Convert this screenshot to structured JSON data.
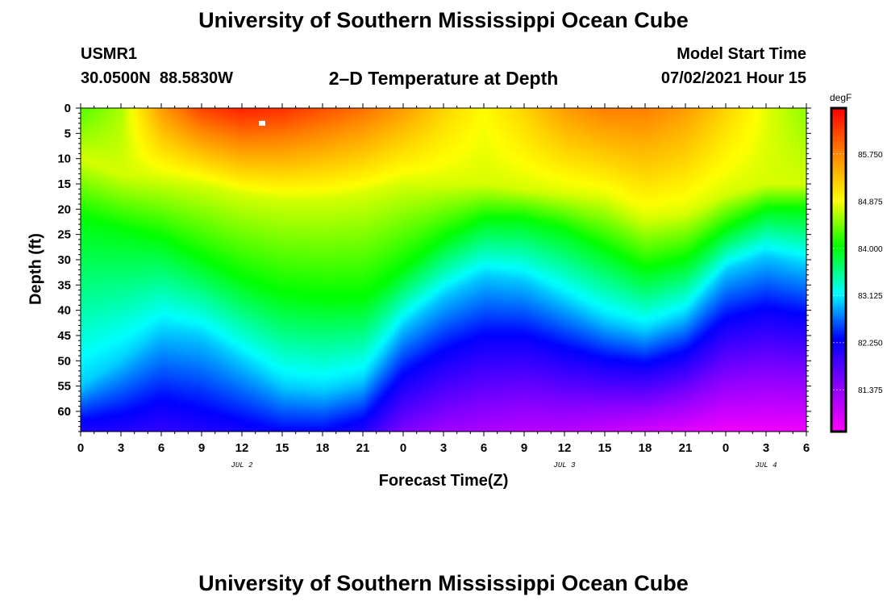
{
  "chart_data": {
    "type": "heatmap",
    "title": "University of Southern Mississippi Ocean Cube",
    "subtitle": "2–D Temperature at Depth",
    "station": "USMR1",
    "location": "30.0500N  88.5830W",
    "model_start_label": "Model Start Time",
    "model_start_value": "07/02/2021 Hour 15",
    "footer_title": "University of Southern Mississippi Ocean Cube",
    "xlabel": "Forecast Time(Z)",
    "ylabel": "Depth (ft)",
    "x_tick_labels": [
      "0",
      "3",
      "6",
      "9",
      "12",
      "15",
      "18",
      "21",
      "0",
      "3",
      "6",
      "9",
      "12",
      "15",
      "18",
      "21",
      "0",
      "3",
      "6"
    ],
    "x_range_hours": [
      0,
      54
    ],
    "date_labels": [
      {
        "label": "JUL 2",
        "hour": 12
      },
      {
        "label": "JUL 3",
        "hour": 36
      },
      {
        "label": "JUL 4",
        "hour": 51
      }
    ],
    "y_tick_labels": [
      "0",
      "5",
      "10",
      "15",
      "20",
      "25",
      "30",
      "35",
      "40",
      "45",
      "50",
      "55",
      "60"
    ],
    "ylim": [
      64,
      0
    ],
    "colorbar": {
      "unit": "degF",
      "tick_labels": [
        "85.750",
        "84.875",
        "84.000",
        "83.125",
        "82.250",
        "81.375"
      ],
      "tick_values": [
        85.75,
        84.875,
        84.0,
        83.125,
        82.25,
        81.375
      ],
      "range": [
        80.6,
        86.6
      ],
      "colors": [
        "#ff00ff",
        "#8800ff",
        "#0000ff",
        "#00ffff",
        "#00ff00",
        "#ffff00",
        "#ff8800",
        "#ff0000"
      ]
    },
    "isotherm_hint": "contour depths (ft) of 84.75, 84.0 and 83.0 degF at each 3 h",
    "profile_hours": [
      0,
      3,
      6,
      9,
      12,
      15,
      18,
      21,
      24,
      27,
      30,
      33,
      36,
      39,
      42,
      45,
      48,
      51,
      54
    ],
    "depth_84_75": [
      10,
      13,
      14,
      15,
      17,
      18,
      18,
      17,
      15,
      15,
      15,
      16,
      17,
      18,
      22,
      21,
      17,
      15,
      15
    ],
    "depth_84_00": [
      22,
      24,
      26,
      30,
      34,
      37,
      38,
      38,
      32,
      26,
      22,
      22,
      24,
      28,
      32,
      30,
      24,
      20,
      20
    ],
    "depth_83_00": [
      55,
      50,
      44,
      45,
      50,
      55,
      56,
      54,
      43,
      37,
      33,
      34,
      38,
      42,
      44,
      41,
      32,
      29,
      31
    ],
    "surface_temp": [
      84.3,
      84.6,
      85.6,
      86.2,
      86.4,
      86.3,
      86.1,
      85.9,
      85.6,
      85.2,
      84.9,
      85.2,
      85.6,
      85.8,
      85.8,
      85.6,
      85.2,
      84.8,
      84.5
    ],
    "bottom_temp": [
      82.1,
      82.1,
      82.0,
      82.1,
      82.2,
      82.3,
      82.3,
      82.1,
      81.5,
      81.3,
      81.2,
      81.1,
      81.1,
      81.0,
      80.9,
      80.8,
      80.7,
      80.7,
      80.7
    ]
  }
}
